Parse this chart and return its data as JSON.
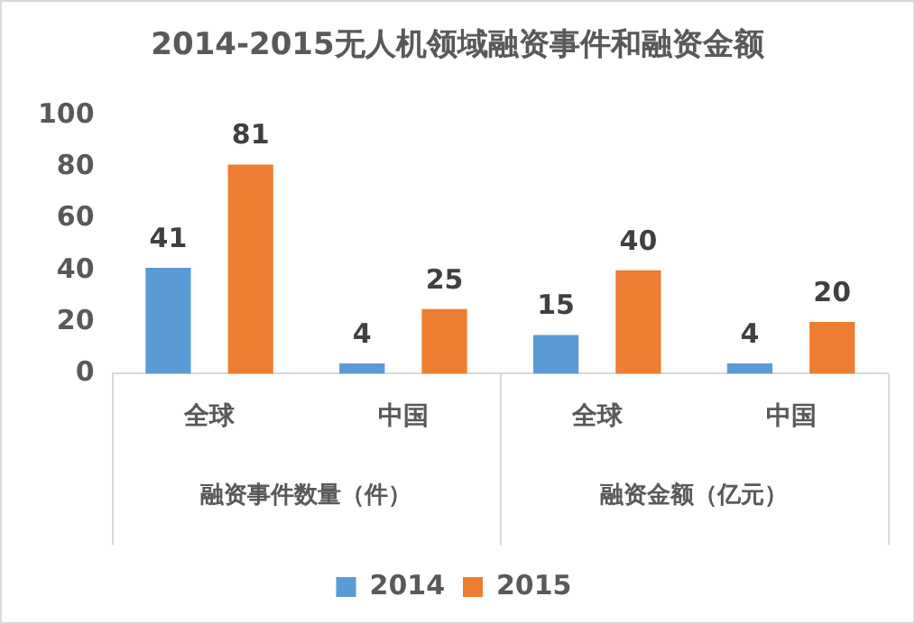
{
  "chart_data": {
    "type": "bar",
    "title": "2014-2015无人机领域融资事件和融资金额",
    "categories": [
      "全球",
      "中国",
      "全球",
      "中国"
    ],
    "series": [
      {
        "name": "2014",
        "color": "#5b9bd5",
        "values": [
          41,
          4,
          15,
          4
        ]
      },
      {
        "name": "2015",
        "color": "#ed7d31",
        "values": [
          81,
          25,
          40,
          20
        ]
      }
    ],
    "ylim": [
      0,
      100
    ],
    "yticks": [
      0,
      20,
      40,
      60,
      80,
      100
    ],
    "grid": false,
    "legend": "bottom",
    "data_labels": true,
    "annotations": [
      "融资事件数量（件）",
      "融资金额（亿元）"
    ]
  }
}
